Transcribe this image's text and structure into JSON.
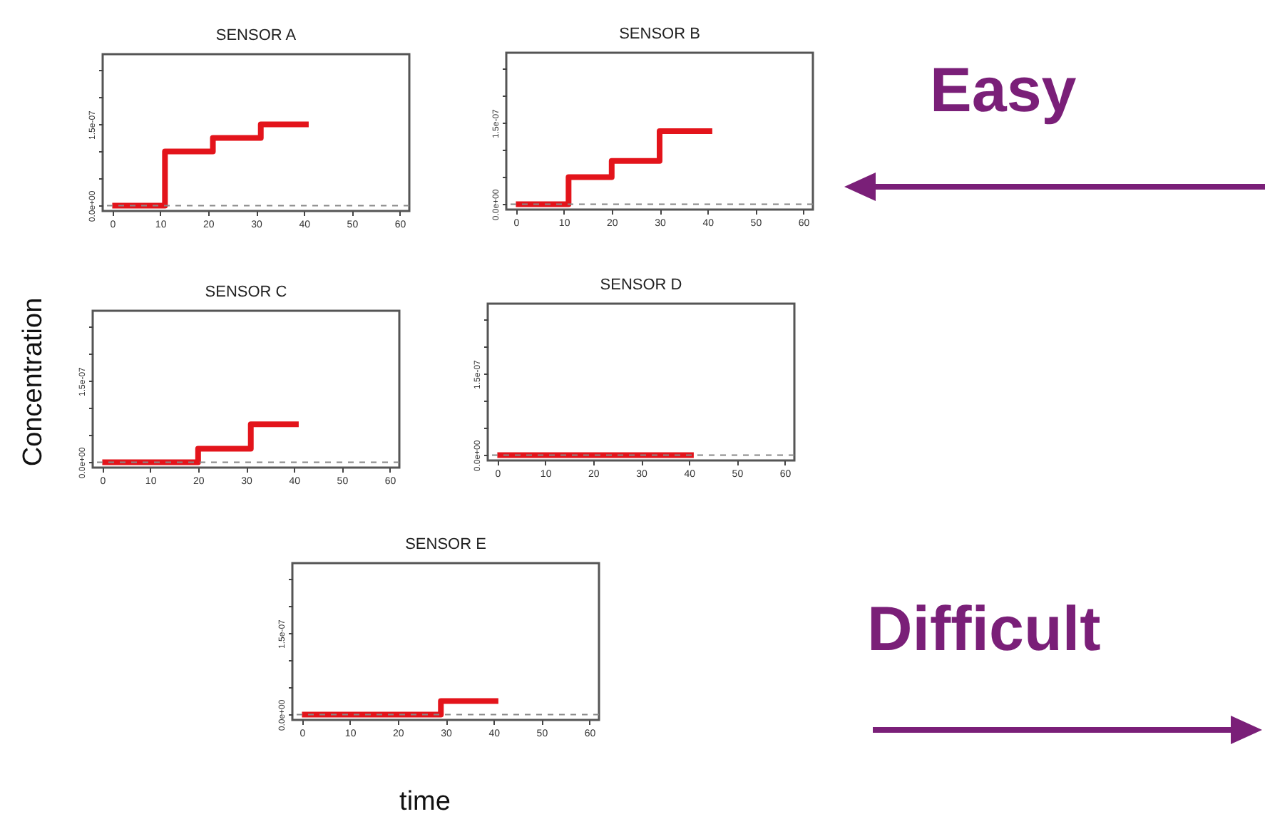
{
  "chart_data": [
    {
      "type": "step",
      "title": "SENSOR A",
      "xlim": [
        -2,
        62
      ],
      "xticks": [
        0,
        10,
        20,
        30,
        40,
        50,
        60
      ],
      "ylim": [
        -1e-08,
        2.8e-07
      ],
      "yticks": [
        {
          "value": 0,
          "label": "0.0e+00"
        },
        {
          "value": 5e-08,
          "label": null
        },
        {
          "value": 1e-07,
          "label": null
        },
        {
          "value": 1.5e-07,
          "label": "1.5e-07"
        },
        {
          "value": 2e-07,
          "label": null
        },
        {
          "value": 2.5e-07,
          "label": null
        }
      ],
      "grid": false,
      "line_style": "solid",
      "ref_lines": [
        {
          "axis": "y",
          "value": 0,
          "color": "#888888",
          "line_style": "dashed"
        }
      ],
      "series": [
        {
          "color": "#e3141b",
          "x": [
            0,
            11,
            21,
            31,
            41
          ],
          "values": [
            0,
            1e-07,
            1.25e-07,
            1.5e-07,
            1.5e-07
          ]
        }
      ]
    },
    {
      "type": "step",
      "title": "SENSOR B",
      "xlim": [
        -2,
        62
      ],
      "xticks": [
        0,
        10,
        20,
        30,
        40,
        50,
        60
      ],
      "ylim": [
        -1e-08,
        2.8e-07
      ],
      "yticks": [
        {
          "value": 0,
          "label": "0.0e+00"
        },
        {
          "value": 5e-08,
          "label": null
        },
        {
          "value": 1e-07,
          "label": null
        },
        {
          "value": 1.5e-07,
          "label": "1.5e-07"
        },
        {
          "value": 2e-07,
          "label": null
        },
        {
          "value": 2.5e-07,
          "label": null
        }
      ],
      "grid": false,
      "line_style": "solid",
      "ref_lines": [
        {
          "axis": "y",
          "value": 0,
          "color": "#888888",
          "line_style": "dashed"
        }
      ],
      "series": [
        {
          "color": "#e3141b",
          "x": [
            0,
            11,
            20,
            30,
            41
          ],
          "values": [
            0,
            5e-08,
            8e-08,
            1.35e-07,
            1.35e-07
          ]
        }
      ]
    },
    {
      "type": "step",
      "title": "SENSOR C",
      "xlim": [
        -2,
        62
      ],
      "xticks": [
        0,
        10,
        20,
        30,
        40,
        50,
        60
      ],
      "ylim": [
        -1e-08,
        2.8e-07
      ],
      "yticks": [
        {
          "value": 0,
          "label": "0.0e+00"
        },
        {
          "value": 5e-08,
          "label": null
        },
        {
          "value": 1e-07,
          "label": null
        },
        {
          "value": 1.5e-07,
          "label": "1.5e-07"
        },
        {
          "value": 2e-07,
          "label": null
        },
        {
          "value": 2.5e-07,
          "label": null
        }
      ],
      "grid": false,
      "line_style": "solid",
      "ref_lines": [
        {
          "axis": "y",
          "value": 0,
          "color": "#888888",
          "line_style": "dashed"
        }
      ],
      "series": [
        {
          "color": "#e3141b",
          "x": [
            0,
            20,
            31,
            41
          ],
          "values": [
            0,
            2.5e-08,
            7e-08,
            7e-08
          ]
        }
      ]
    },
    {
      "type": "step",
      "title": "SENSOR D",
      "xlim": [
        -2,
        62
      ],
      "xticks": [
        0,
        10,
        20,
        30,
        40,
        50,
        60
      ],
      "ylim": [
        -1e-08,
        2.8e-07
      ],
      "yticks": [
        {
          "value": 0,
          "label": "0.0e+00"
        },
        {
          "value": 5e-08,
          "label": null
        },
        {
          "value": 1e-07,
          "label": null
        },
        {
          "value": 1.5e-07,
          "label": "1.5e-07"
        },
        {
          "value": 2e-07,
          "label": null
        },
        {
          "value": 2.5e-07,
          "label": null
        }
      ],
      "grid": false,
      "line_style": "solid",
      "ref_lines": [
        {
          "axis": "y",
          "value": 0,
          "color": "#888888",
          "line_style": "dashed"
        }
      ],
      "series": [
        {
          "color": "#e3141b",
          "x": [
            0,
            41
          ],
          "values": [
            0,
            0
          ]
        }
      ]
    },
    {
      "type": "step",
      "title": "SENSOR E",
      "xlim": [
        -2,
        62
      ],
      "xticks": [
        0,
        10,
        20,
        30,
        40,
        50,
        60
      ],
      "ylim": [
        -1e-08,
        2.8e-07
      ],
      "yticks": [
        {
          "value": 0,
          "label": "0.0e+00"
        },
        {
          "value": 5e-08,
          "label": null
        },
        {
          "value": 1e-07,
          "label": null
        },
        {
          "value": 1.5e-07,
          "label": "1.5e-07"
        },
        {
          "value": 2e-07,
          "label": null
        },
        {
          "value": 2.5e-07,
          "label": null
        }
      ],
      "grid": false,
      "line_style": "solid",
      "ref_lines": [
        {
          "axis": "y",
          "value": 0,
          "color": "#888888",
          "line_style": "dashed"
        }
      ],
      "series": [
        {
          "color": "#e3141b",
          "x": [
            0,
            29,
            41
          ],
          "values": [
            0,
            2.5e-08,
            2.5e-08
          ]
        }
      ]
    },
    {
      "type": "other",
      "xlabel": "time",
      "ylabel": "Concentration",
      "annotations": [
        "Easy",
        "Difficult"
      ]
    }
  ]
}
